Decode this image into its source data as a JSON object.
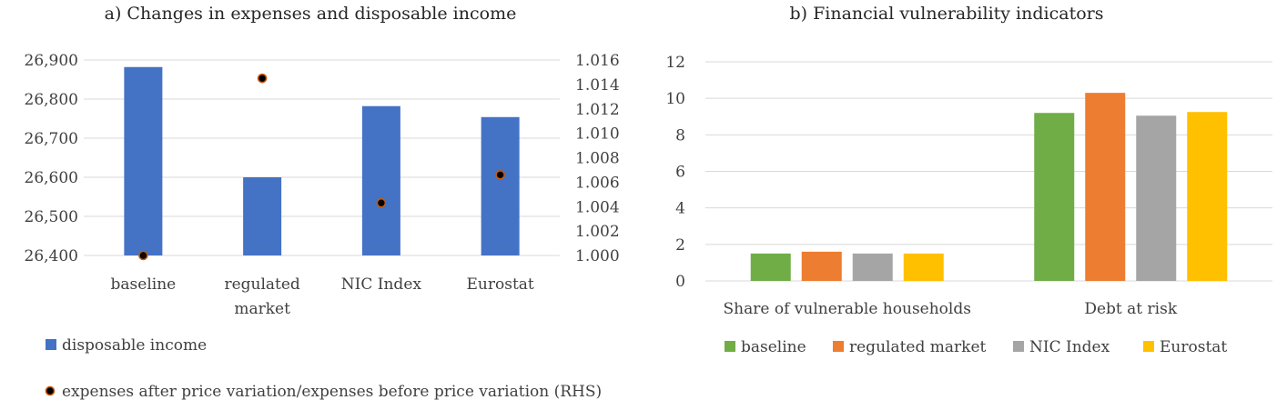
{
  "colors": {
    "blue": "#4472c4",
    "green": "#70ad47",
    "orange": "#ed7d31",
    "gray": "#a5a5a5",
    "yellow": "#ffc000",
    "dot_fill": "#000000",
    "dot_ring": "#c55a11"
  },
  "chart_data": [
    {
      "type": "bar",
      "title": "a) Changes in expenses and disposable income",
      "categories": [
        "baseline",
        "regulated market",
        "NIC Index",
        "Eurostat"
      ],
      "category_lines": [
        [
          "baseline"
        ],
        [
          "regulated",
          "market"
        ],
        [
          "NIC Index"
        ],
        [
          "Eurostat"
        ]
      ],
      "ylim": [
        26400,
        26900
      ],
      "yticks": [
        "26,400",
        "26,500",
        "26,600",
        "26,700",
        "26,800",
        "26,900"
      ],
      "y2lim": [
        1.0,
        1.016
      ],
      "y2ticks": [
        "1.000",
        "1.002",
        "1.004",
        "1.006",
        "1.008",
        "1.010",
        "1.012",
        "1.014",
        "1.016"
      ],
      "grid": true,
      "legend_position": "bottom-left",
      "series": [
        {
          "name": "disposable income",
          "type": "bar",
          "axis": "left",
          "values": [
            26882,
            26600,
            26782,
            26754
          ]
        },
        {
          "name": "expenses after price variation/expenses before price variation (RHS)",
          "type": "scatter",
          "axis": "right",
          "values": [
            1.0,
            1.0145,
            1.0043,
            1.0066
          ]
        }
      ]
    },
    {
      "type": "bar",
      "title": "b) Financial vulnerability indicators",
      "categories": [
        "Share of vulnerable households",
        "Debt at risk"
      ],
      "ylim": [
        0,
        12
      ],
      "yticks": [
        "0",
        "2",
        "4",
        "6",
        "8",
        "10",
        "12"
      ],
      "grid": true,
      "legend_position": "bottom",
      "series": [
        {
          "name": "baseline",
          "values": [
            1.5,
            9.2
          ]
        },
        {
          "name": "regulated market",
          "values": [
            1.6,
            10.3
          ]
        },
        {
          "name": "NIC Index",
          "values": [
            1.5,
            9.05
          ]
        },
        {
          "name": "Eurostat",
          "values": [
            1.5,
            9.25
          ]
        }
      ]
    }
  ]
}
